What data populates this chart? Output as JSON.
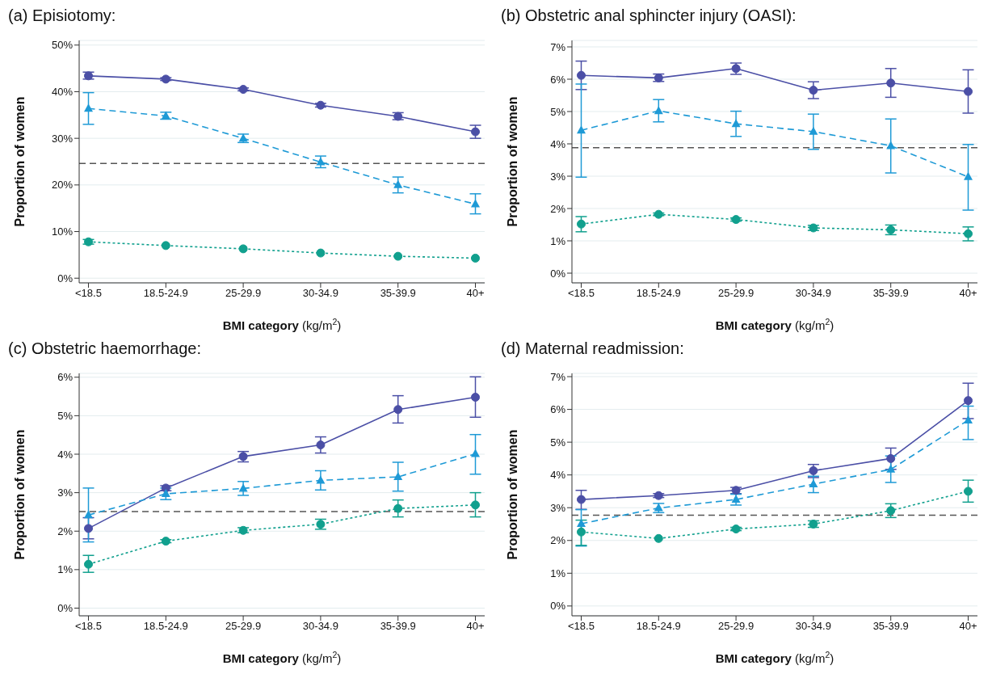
{
  "chart_data": [
    {
      "type": "line",
      "title": "(a)  Episiotomy:",
      "xlabel": "BMI category (kg/m$^{2}$)",
      "ylabel": "Proportion of women",
      "categories": [
        "<18.5",
        "18.5-24.9",
        "25-29.9",
        "30-34.9",
        "35-39.9",
        "40+"
      ],
      "ylim": [
        -1,
        51
      ],
      "yticks": [
        {
          "value": 0,
          "label": "0%"
        },
        {
          "value": 10,
          "label": "10%"
        },
        {
          "value": 20,
          "label": "20%"
        },
        {
          "value": 30,
          "label": "30%"
        },
        {
          "value": 40,
          "label": "40%"
        },
        {
          "value": 50,
          "label": "50%"
        }
      ],
      "grid": "y",
      "series": [
        {
          "color": "#4b4fa6",
          "marker": "circle",
          "line_style": "solid",
          "values": [
            43.4,
            42.7,
            40.5,
            37.1,
            34.7,
            31.4
          ],
          "errors": [
            [
              42.7,
              44.2
            ],
            [
              42.4,
              43.0
            ],
            [
              40.2,
              40.8
            ],
            [
              36.7,
              37.5
            ],
            [
              34.0,
              35.5
            ],
            [
              30.0,
              32.8
            ]
          ]
        },
        {
          "color": "#1e9ad6",
          "marker": "triangle",
          "line_style": "dashed",
          "values": [
            36.4,
            34.8,
            30.0,
            24.9,
            20.0,
            15.9
          ],
          "errors": [
            [
              33.0,
              39.8
            ],
            [
              34.1,
              35.6
            ],
            [
              29.1,
              30.9
            ],
            [
              23.7,
              26.2
            ],
            [
              18.3,
              21.7
            ],
            [
              13.8,
              18.1
            ]
          ]
        },
        {
          "color": "#11a08e",
          "marker": "circle",
          "line_style": "dotted",
          "values": [
            7.8,
            7.0,
            6.3,
            5.4,
            4.7,
            4.3
          ],
          "errors": [
            [
              7.3,
              8.3
            ],
            null,
            null,
            null,
            null,
            null
          ]
        }
      ],
      "ref_lines": [
        {
          "axis": "y",
          "value": 24.6,
          "color": "#555555",
          "line_style": "dashed"
        }
      ]
    },
    {
      "type": "line",
      "title": "(b)  Obstetric anal sphincter injury (OASI):",
      "xlabel": "BMI category (kg/m$^{2}$)",
      "ylabel": "Proportion of women",
      "categories": [
        "<18.5",
        "18.5-24.9",
        "25-29.9",
        "30-34.9",
        "35-39.9",
        "40+"
      ],
      "ylim": [
        -0.3,
        7.2
      ],
      "yticks": [
        {
          "value": 0,
          "label": "0%"
        },
        {
          "value": 1,
          "label": "1%"
        },
        {
          "value": 2,
          "label": "2%"
        },
        {
          "value": 3,
          "label": "3%"
        },
        {
          "value": 4,
          "label": "4%"
        },
        {
          "value": 5,
          "label": "5%"
        },
        {
          "value": 6,
          "label": "6%"
        },
        {
          "value": 7,
          "label": "7%"
        }
      ],
      "grid": "y",
      "series": [
        {
          "color": "#4b4fa6",
          "marker": "circle",
          "line_style": "solid",
          "values": [
            6.12,
            6.04,
            6.33,
            5.66,
            5.88,
            5.62
          ],
          "errors": [
            [
              5.68,
              6.56
            ],
            [
              5.93,
              6.16
            ],
            [
              6.15,
              6.5
            ],
            [
              5.4,
              5.92
            ],
            [
              5.44,
              6.33
            ],
            [
              4.95,
              6.29
            ]
          ]
        },
        {
          "color": "#1e9ad6",
          "marker": "triangle",
          "line_style": "dashed",
          "values": [
            4.42,
            5.02,
            4.62,
            4.38,
            3.94,
            2.98
          ],
          "errors": [
            [
              2.97,
              5.85
            ],
            [
              4.68,
              5.37
            ],
            [
              4.23,
              5.01
            ],
            [
              3.83,
              4.92
            ],
            [
              3.1,
              4.77
            ],
            [
              1.95,
              3.98
            ]
          ]
        },
        {
          "color": "#11a08e",
          "marker": "circle",
          "line_style": "dotted",
          "values": [
            1.52,
            1.82,
            1.66,
            1.4,
            1.34,
            1.22
          ],
          "errors": [
            [
              1.28,
              1.75
            ],
            [
              1.78,
              1.86
            ],
            [
              1.61,
              1.71
            ],
            [
              1.32,
              1.48
            ],
            [
              1.19,
              1.49
            ],
            [
              1.0,
              1.43
            ]
          ]
        }
      ],
      "ref_lines": [
        {
          "axis": "y",
          "value": 3.88,
          "color": "#555555",
          "line_style": "dashed"
        }
      ]
    },
    {
      "type": "line",
      "title": "(c)  Obstetric haemorrhage:",
      "xlabel": "BMI category (kg/m$^{2}$)",
      "ylabel": "Proportion of women",
      "categories": [
        "<18.5",
        "18.5-24.9",
        "25-29.9",
        "30-34.9",
        "35-39.9",
        "40+"
      ],
      "ylim": [
        -0.2,
        6.1
      ],
      "yticks": [
        {
          "value": 0,
          "label": "0%"
        },
        {
          "value": 1,
          "label": "1%"
        },
        {
          "value": 2,
          "label": "2%"
        },
        {
          "value": 3,
          "label": "3%"
        },
        {
          "value": 4,
          "label": "4%"
        },
        {
          "value": 5,
          "label": "5%"
        },
        {
          "value": 6,
          "label": "6%"
        }
      ],
      "grid": "y",
      "series": [
        {
          "color": "#4b4fa6",
          "marker": "circle",
          "line_style": "solid",
          "values": [
            2.07,
            3.12,
            3.94,
            4.24,
            5.16,
            5.48
          ],
          "errors": [
            [
              1.8,
              2.35
            ],
            [
              3.05,
              3.18
            ],
            [
              3.8,
              4.07
            ],
            [
              4.03,
              4.45
            ],
            [
              4.81,
              5.52
            ],
            [
              4.96,
              6.01
            ]
          ]
        },
        {
          "color": "#1e9ad6",
          "marker": "triangle",
          "line_style": "dashed",
          "values": [
            2.42,
            2.97,
            3.11,
            3.32,
            3.41,
            4.01
          ],
          "errors": [
            [
              1.72,
              3.12
            ],
            [
              2.82,
              3.12
            ],
            [
              2.93,
              3.29
            ],
            [
              3.07,
              3.57
            ],
            [
              3.04,
              3.79
            ],
            [
              3.48,
              4.51
            ]
          ]
        },
        {
          "color": "#11a08e",
          "marker": "circle",
          "line_style": "dotted",
          "values": [
            1.14,
            1.74,
            2.02,
            2.18,
            2.59,
            2.68
          ],
          "errors": [
            [
              0.93,
              1.37
            ],
            [
              1.7,
              1.78
            ],
            [
              1.96,
              2.09
            ],
            [
              2.05,
              2.31
            ],
            [
              2.37,
              2.81
            ],
            [
              2.37,
              3.0
            ]
          ]
        }
      ],
      "ref_lines": [
        {
          "axis": "y",
          "value": 2.51,
          "color": "#555555",
          "line_style": "dashed"
        }
      ]
    },
    {
      "type": "line",
      "title": "(d)  Maternal readmission:",
      "xlabel": "BMI category (kg/m$^{2}$)",
      "ylabel": "Proportion of women",
      "categories": [
        "<18.5",
        "18.5-24.9",
        "25-29.9",
        "30-34.9",
        "35-39.9",
        "40+"
      ],
      "ylim": [
        -0.3,
        7.1
      ],
      "yticks": [
        {
          "value": 0,
          "label": "0%"
        },
        {
          "value": 1,
          "label": "1%"
        },
        {
          "value": 2,
          "label": "2%"
        },
        {
          "value": 3,
          "label": "3%"
        },
        {
          "value": 4,
          "label": "4%"
        },
        {
          "value": 5,
          "label": "5%"
        },
        {
          "value": 6,
          "label": "6%"
        },
        {
          "value": 7,
          "label": "7%"
        }
      ],
      "grid": "y",
      "series": [
        {
          "color": "#4b4fa6",
          "marker": "circle",
          "line_style": "solid",
          "values": [
            3.25,
            3.37,
            3.53,
            4.13,
            4.5,
            6.27
          ],
          "errors": [
            [
              2.95,
              3.53
            ],
            [
              3.31,
              3.43
            ],
            [
              3.43,
              3.62
            ],
            [
              3.92,
              4.32
            ],
            [
              4.17,
              4.82
            ],
            [
              5.72,
              6.8
            ]
          ]
        },
        {
          "color": "#1e9ad6",
          "marker": "triangle",
          "line_style": "dashed",
          "values": [
            2.51,
            2.99,
            3.25,
            3.72,
            4.17,
            5.67
          ],
          "errors": [
            [
              1.83,
              2.94
            ],
            [
              2.85,
              3.13
            ],
            [
              3.08,
              3.41
            ],
            [
              3.46,
              3.96
            ],
            [
              3.77,
              4.58
            ],
            [
              5.08,
              6.1
            ]
          ]
        },
        {
          "color": "#11a08e",
          "marker": "circle",
          "line_style": "dotted",
          "values": [
            2.26,
            2.06,
            2.35,
            2.5,
            2.91,
            3.5
          ],
          "errors": [
            [
              1.85,
              2.62
            ],
            null,
            [
              2.3,
              2.4
            ],
            [
              2.4,
              2.6
            ],
            [
              2.7,
              3.12
            ],
            [
              3.17,
              3.84
            ]
          ]
        }
      ],
      "ref_lines": [
        {
          "axis": "y",
          "value": 2.77,
          "color": "#555555",
          "line_style": "dashed"
        }
      ]
    }
  ]
}
